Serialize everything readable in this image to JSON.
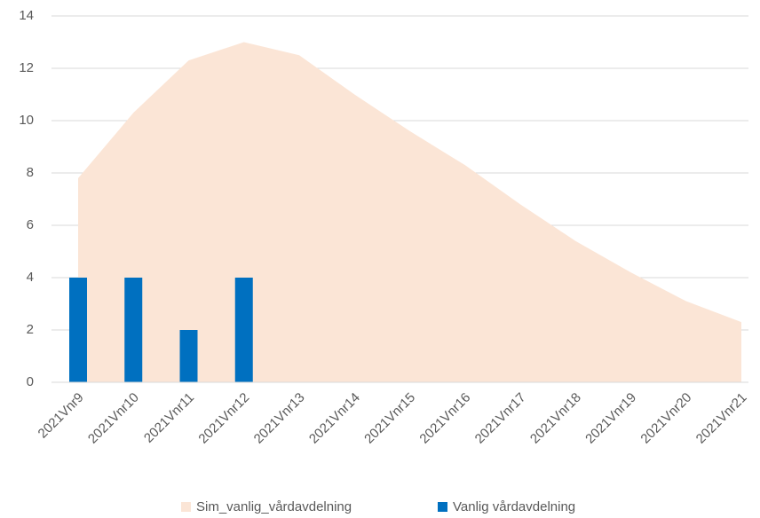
{
  "chart_data": {
    "type": "combo",
    "categories": [
      "2021Vnr9",
      "2021Vnr10",
      "2021Vnr11",
      "2021Vnr12",
      "2021Vnr13",
      "2021Vnr14",
      "2021Vnr15",
      "2021Vnr16",
      "2021Vnr17",
      "2021Vnr18",
      "2021Vnr19",
      "2021Vnr20",
      "2021Vnr21"
    ],
    "series": [
      {
        "name": "Sim_vanlig_vårdavdelning",
        "type": "area",
        "color": "#fbe5d6",
        "values": [
          7.8,
          10.3,
          12.3,
          13.0,
          12.5,
          11.0,
          9.6,
          8.3,
          6.8,
          5.4,
          4.2,
          3.1,
          2.3
        ]
      },
      {
        "name": "Vanlig vårdavdelning",
        "type": "bar",
        "color": "#0070c0",
        "values": [
          4,
          4,
          2,
          4,
          null,
          null,
          null,
          null,
          null,
          null,
          null,
          null,
          null
        ]
      }
    ],
    "ylim": [
      0,
      14
    ],
    "yticks": [
      0,
      2,
      4,
      6,
      8,
      10,
      12,
      14
    ],
    "grid": true,
    "legend": "bottom"
  }
}
